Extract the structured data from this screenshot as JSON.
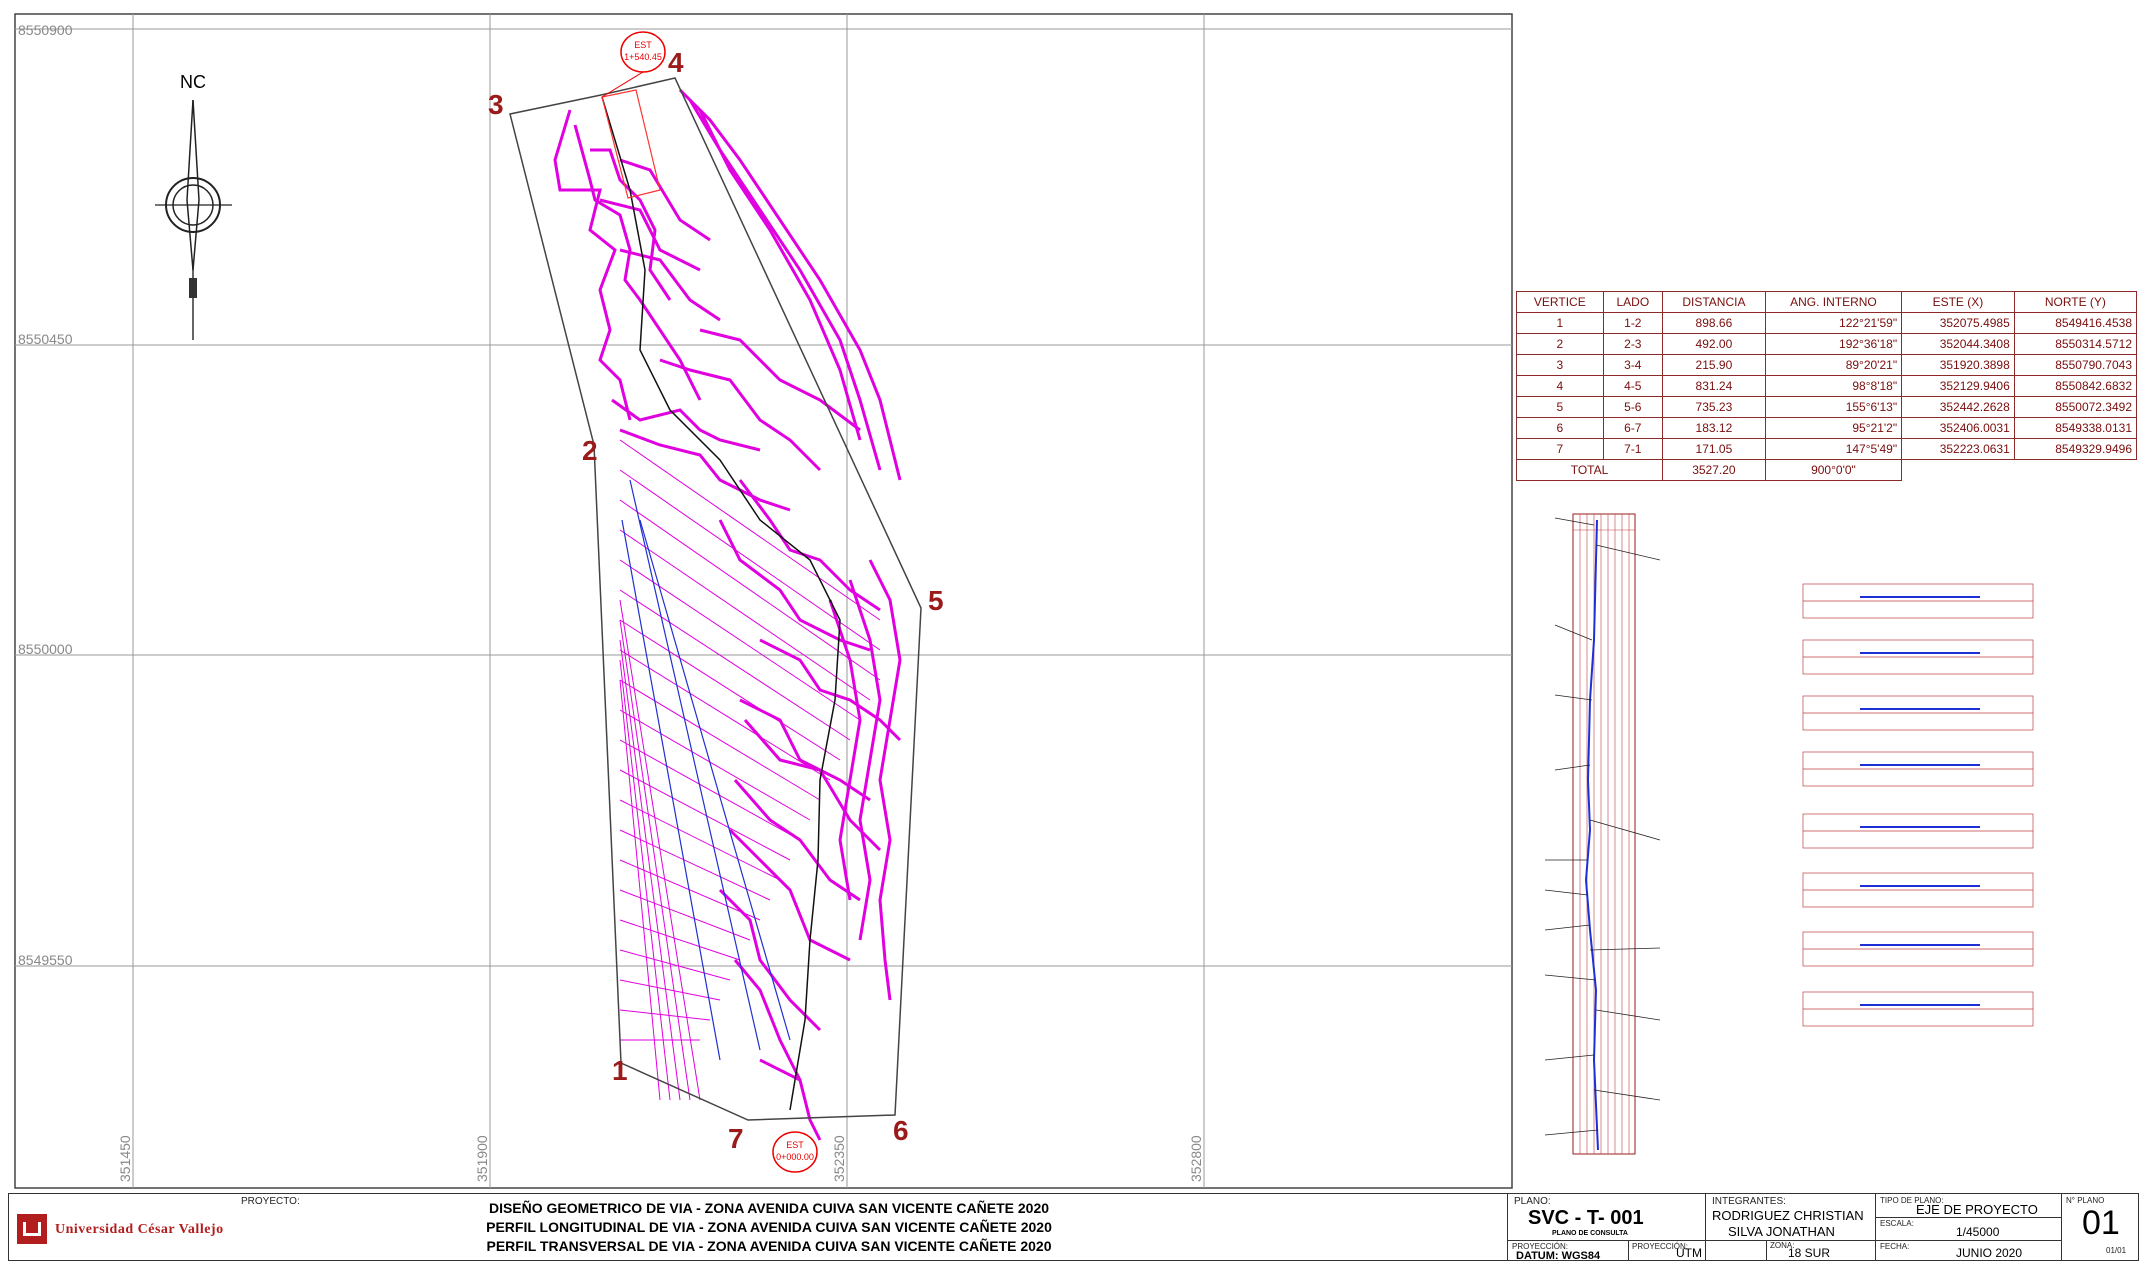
{
  "map": {
    "north_label": "NC",
    "grid_y_labels": [
      "8550900",
      "8550450",
      "8550000",
      "8549550"
    ],
    "grid_x_labels": [
      "351450",
      "351900",
      "352350",
      "352800"
    ],
    "vertex_labels": [
      "1",
      "2",
      "3",
      "4",
      "5",
      "6",
      "7"
    ],
    "station_top": {
      "line1": "EST",
      "line2": "1+540.45"
    },
    "station_bottom": {
      "line1": "EST",
      "line2": "0+000.00"
    }
  },
  "vertex_table": {
    "headers": [
      "VERTICE",
      "LADO",
      "DISTANCIA",
      "ANG. INTERNO",
      "ESTE (X)",
      "NORTE (Y)"
    ],
    "rows": [
      [
        "1",
        "1-2",
        "898.66",
        "122°21'59\"",
        "352075.4985",
        "8549416.4538"
      ],
      [
        "2",
        "2-3",
        "492.00",
        "192°36'18\"",
        "352044.3408",
        "8550314.5712"
      ],
      [
        "3",
        "3-4",
        "215.90",
        "89°20'21\"",
        "351920.3898",
        "8550790.7043"
      ],
      [
        "4",
        "4-5",
        "831.24",
        "98°8'18\"",
        "352129.9406",
        "8550842.6832"
      ],
      [
        "5",
        "5-6",
        "735.23",
        "155°6'13\"",
        "352442.2628",
        "8550072.3492"
      ],
      [
        "6",
        "6-7",
        "183.12",
        "95°21'2\"",
        "352406.0031",
        "8549338.0131"
      ],
      [
        "7",
        "7-1",
        "171.05",
        "147°5'49\"",
        "352223.0631",
        "8549329.9496"
      ]
    ],
    "total": {
      "label": "TOTAL",
      "distance": "3527.20",
      "angle": "900°0'0\""
    }
  },
  "title_block": {
    "university": "Universidad César Vallejo",
    "project_label": "PROYECTO:",
    "project_lines": [
      "DISEÑO GEOMETRICO DE VIA - ZONA AVENIDA CUIVA SAN VICENTE CAÑETE 2020",
      "PERFIL LONGITUDINAL DE VIA - ZONA AVENIDA CUIVA SAN VICENTE CAÑETE 2020",
      "PERFIL TRANSVERSAL DE VIA - ZONA AVENIDA CUIVA SAN VICENTE CAÑETE 2020"
    ],
    "plano_label": "PLANO:",
    "plano_code": "SVC - T- 001",
    "plano_sub": "PLANO DE CONSULTA",
    "integrantes_label": "INTEGRANTES:",
    "integrantes": [
      "RODRIGUEZ CHRISTIAN",
      "SILVA JONATHAN"
    ],
    "tipo_label": "TIPO DE PLANO:",
    "tipo_value": "EJE DE PROYECTO",
    "escala_label": "ESCALA:",
    "escala_value": "1/45000",
    "nplano_label": "N° PLANO",
    "nplano_value": "01",
    "nplano_sub": "01/01",
    "proyeccion_label": "PROYECCIÓN:",
    "datum": "DATUM: WGS84",
    "proyeccion2_label": "PROYECCIÓN:",
    "utm": "UTM",
    "zona_label": "ZONA:",
    "zona_value": "18 SUR",
    "fecha_label": "FECHA:",
    "fecha_value": "JUNIO 2020"
  },
  "colors": {
    "contour": "#e000e0",
    "axis": "#1f2fd6",
    "vertex_label": "#9b1b1b",
    "grid": "#888888"
  }
}
